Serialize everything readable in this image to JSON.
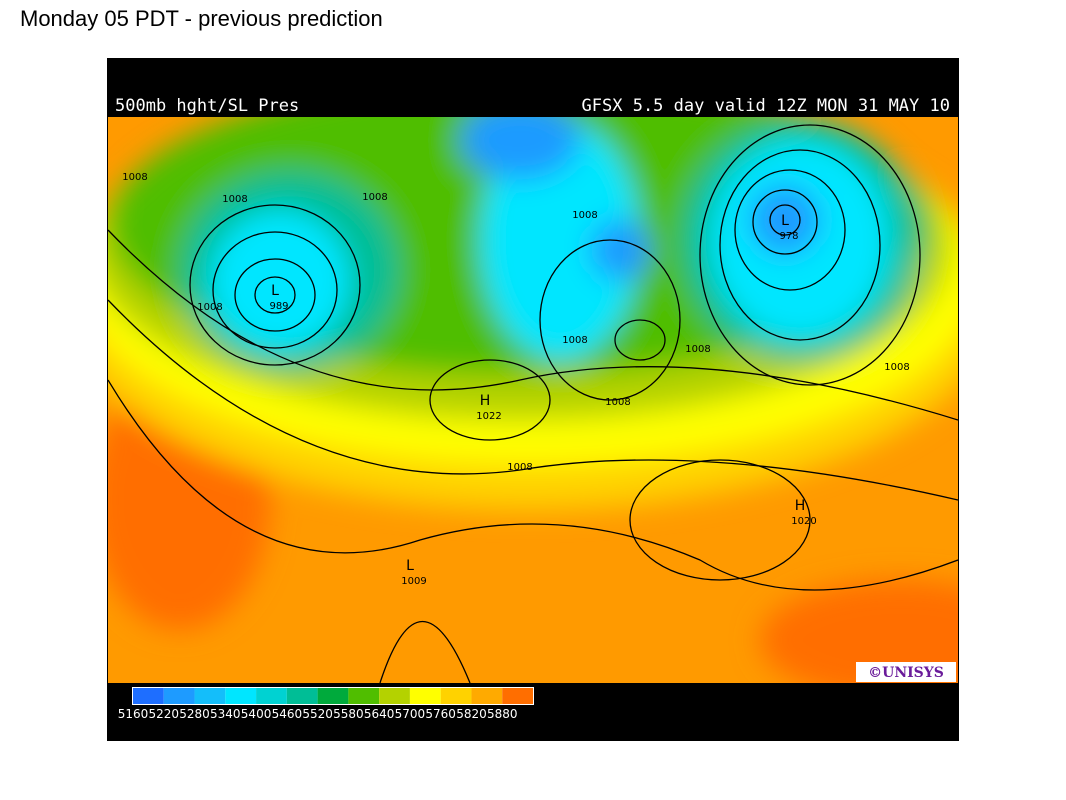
{
  "page_title": "Monday 05 PDT - previous prediction",
  "map": {
    "header_left": "500mb hght/SL Pres",
    "header_right": "GFSX 5.5 day valid 12Z MON 31 MAY 10",
    "centers": [
      {
        "mark": "L",
        "pressure": "989"
      },
      {
        "mark": "L",
        "pressure": "978"
      },
      {
        "mark": "H",
        "pressure": "1022"
      },
      {
        "mark": "H",
        "pressure": "1020"
      },
      {
        "mark": "L",
        "pressure": "1009"
      }
    ],
    "isobar_labels": [
      "1008",
      "1008",
      "1008",
      "1008",
      "1008",
      "1008",
      "1008",
      "1008",
      "1008",
      "1008"
    ],
    "credit": "©UNISYS",
    "legend": {
      "values": [
        5160,
        5220,
        5280,
        5340,
        5400,
        5460,
        5520,
        5580,
        5640,
        5700,
        5760,
        5820,
        5880
      ],
      "colors": [
        "#1e6eff",
        "#1e9bff",
        "#14befa",
        "#00e6ff",
        "#00d2d2",
        "#00be96",
        "#00aa3c",
        "#50be00",
        "#b4d200",
        "#ffff00",
        "#ffd200",
        "#ffaa00",
        "#ff6e00"
      ]
    }
  }
}
